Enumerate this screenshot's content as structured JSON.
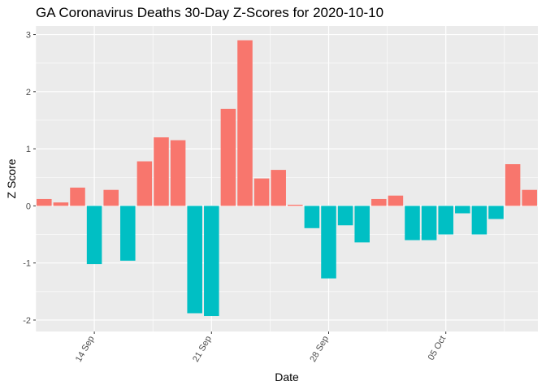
{
  "chart_data": {
    "type": "bar",
    "title": "GA Coronavirus Deaths 30-Day Z-Scores for 2020-10-10",
    "xlabel": "Date",
    "ylabel": "Z Score",
    "ylim": [
      -2.2,
      3.15
    ],
    "yticks": [
      -2,
      -1,
      0,
      1,
      2,
      3
    ],
    "xtick_labels": [
      "14 Sep",
      "21 Sep",
      "28 Sep",
      "05 Oct"
    ],
    "xtick_days": [
      3,
      10,
      17,
      24
    ],
    "x": [
      "2020-09-11",
      "2020-09-12",
      "2020-09-13",
      "2020-09-14",
      "2020-09-15",
      "2020-09-16",
      "2020-09-17",
      "2020-09-18",
      "2020-09-19",
      "2020-09-20",
      "2020-09-21",
      "2020-09-22",
      "2020-09-23",
      "2020-09-24",
      "2020-09-25",
      "2020-09-26",
      "2020-09-27",
      "2020-09-28",
      "2020-09-29",
      "2020-09-30",
      "2020-10-01",
      "2020-10-02",
      "2020-10-03",
      "2020-10-04",
      "2020-10-05",
      "2020-10-06",
      "2020-10-07",
      "2020-10-08",
      "2020-10-09",
      "2020-10-10"
    ],
    "values": [
      0.12,
      0.06,
      0.32,
      -1.02,
      0.28,
      -0.96,
      0.78,
      1.2,
      1.15,
      -1.88,
      -1.93,
      1.7,
      2.9,
      0.48,
      0.63,
      0.02,
      -0.39,
      -1.27,
      -0.34,
      -0.64,
      0.12,
      0.18,
      -0.6,
      -0.6,
      -0.5,
      -0.13,
      -0.5,
      -0.23,
      0.73,
      0.28
    ],
    "colors": {
      "positive": "#f8766d",
      "negative": "#00bfc4",
      "panel": "#ebebeb",
      "grid": "#ffffff"
    },
    "grid": true,
    "legend": "none"
  }
}
